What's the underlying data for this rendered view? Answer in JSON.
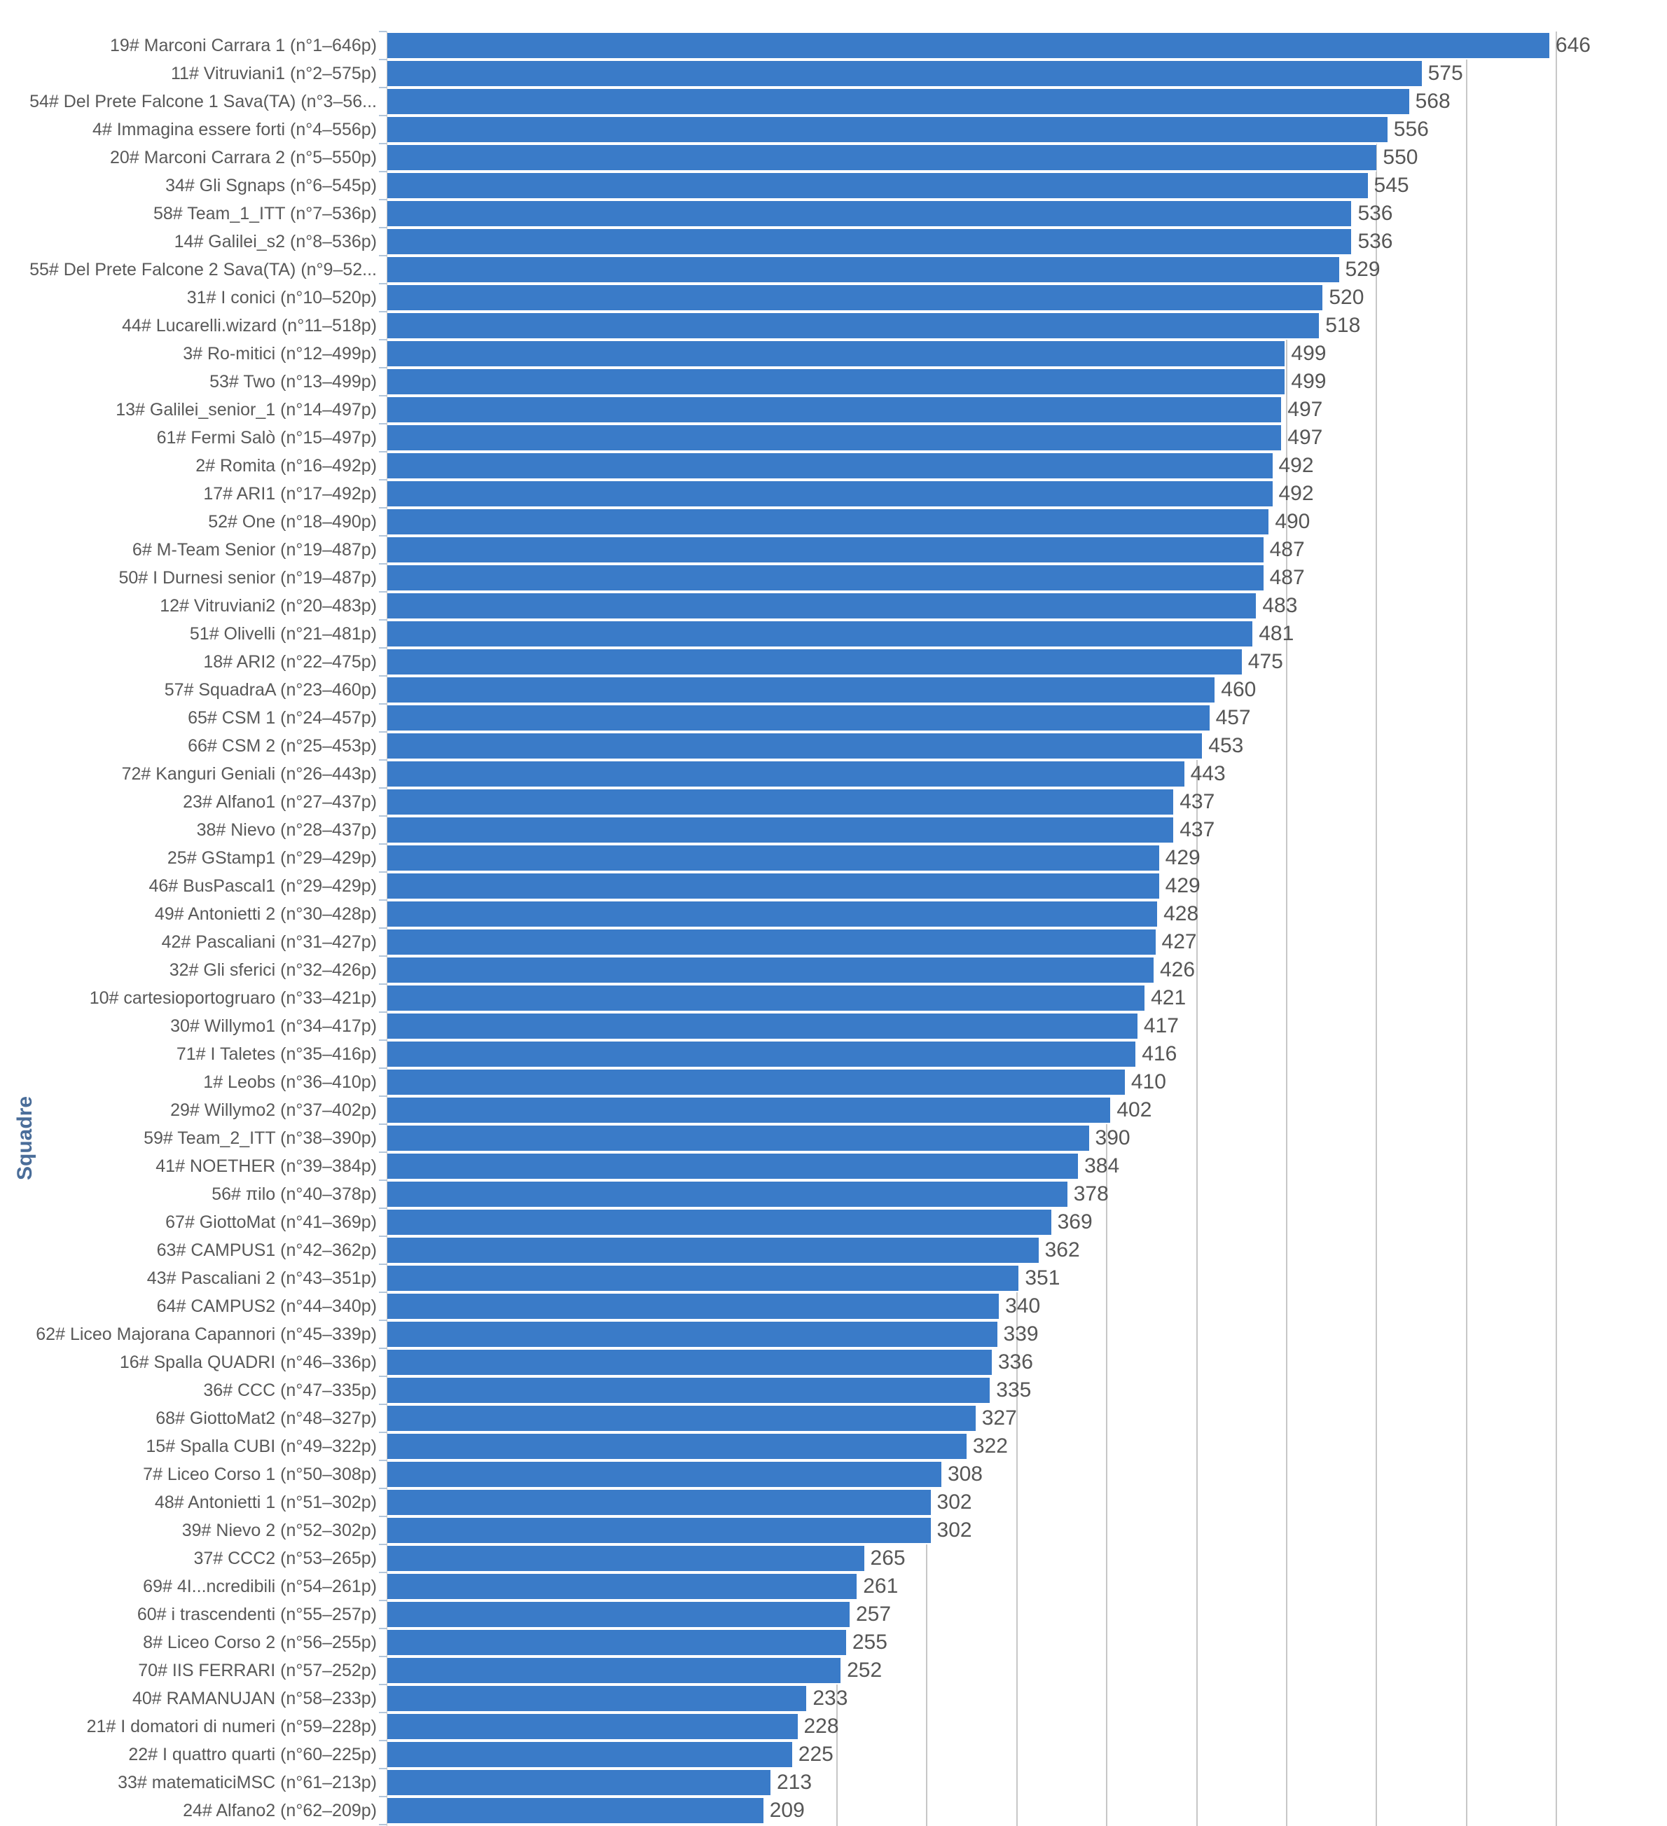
{
  "page": {
    "background": "#ffffff"
  },
  "chart_data": {
    "type": "bar",
    "orientation": "horizontal",
    "title": "",
    "xlabel": "",
    "ylabel": "Squadre",
    "xlim": [
      0,
      712
    ],
    "grid": {
      "on": true,
      "interval": 50,
      "first_line": 250,
      "last_line": 650
    },
    "legend": "none",
    "value_labels": "outside-end",
    "rows": [
      {
        "label": "19# Marconi Carrara 1 (n°1–646p)",
        "value": 646
      },
      {
        "label": "11# Vitruviani1 (n°2–575p)",
        "value": 575
      },
      {
        "label": "54# Del Prete Falcone 1 Sava(TA) (n°3–56...",
        "value": 568
      },
      {
        "label": "4# Immagina essere forti (n°4–556p)",
        "value": 556
      },
      {
        "label": "20# Marconi Carrara 2 (n°5–550p)",
        "value": 550
      },
      {
        "label": "34# Gli Sgnaps (n°6–545p)",
        "value": 545
      },
      {
        "label": "58# Team_1_ITT (n°7–536p)",
        "value": 536
      },
      {
        "label": "14# Galilei_s2 (n°8–536p)",
        "value": 536
      },
      {
        "label": "55# Del Prete Falcone 2 Sava(TA) (n°9–52...",
        "value": 529
      },
      {
        "label": "31# I conici (n°10–520p)",
        "value": 520
      },
      {
        "label": "44# Lucarelli.wizard (n°11–518p)",
        "value": 518
      },
      {
        "label": "3# Ro-mitici (n°12–499p)",
        "value": 499
      },
      {
        "label": "53# Two (n°13–499p)",
        "value": 499
      },
      {
        "label": "13# Galilei_senior_1 (n°14–497p)",
        "value": 497
      },
      {
        "label": "61# Fermi Salò (n°15–497p)",
        "value": 497
      },
      {
        "label": "2# Romita (n°16–492p)",
        "value": 492
      },
      {
        "label": "17# ARI1 (n°17–492p)",
        "value": 492
      },
      {
        "label": "52# One (n°18–490p)",
        "value": 490
      },
      {
        "label": "6# M-Team Senior (n°19–487p)",
        "value": 487
      },
      {
        "label": "50# I Durnesi senior (n°19–487p)",
        "value": 487
      },
      {
        "label": "12# Vitruviani2 (n°20–483p)",
        "value": 483
      },
      {
        "label": "51# Olivelli (n°21–481p)",
        "value": 481
      },
      {
        "label": "18# ARI2 (n°22–475p)",
        "value": 475
      },
      {
        "label": "57# SquadraA (n°23–460p)",
        "value": 460
      },
      {
        "label": "65# CSM 1 (n°24–457p)",
        "value": 457
      },
      {
        "label": "66# CSM 2 (n°25–453p)",
        "value": 453
      },
      {
        "label": "72# Kanguri Geniali (n°26–443p)",
        "value": 443
      },
      {
        "label": "23# Alfano1 (n°27–437p)",
        "value": 437
      },
      {
        "label": "38# Nievo (n°28–437p)",
        "value": 437
      },
      {
        "label": "25# GStamp1 (n°29–429p)",
        "value": 429
      },
      {
        "label": "46# BusPascal1 (n°29–429p)",
        "value": 429
      },
      {
        "label": "49# Antonietti 2 (n°30–428p)",
        "value": 428
      },
      {
        "label": "42# Pascaliani (n°31–427p)",
        "value": 427
      },
      {
        "label": "32# Gli sferici (n°32–426p)",
        "value": 426
      },
      {
        "label": "10# cartesioportogruaro (n°33–421p)",
        "value": 421
      },
      {
        "label": "30# Willymo1 (n°34–417p)",
        "value": 417
      },
      {
        "label": "71# I Taletes (n°35–416p)",
        "value": 416
      },
      {
        "label": "1# Leobs (n°36–410p)",
        "value": 410
      },
      {
        "label": "29# Willymo2 (n°37–402p)",
        "value": 402
      },
      {
        "label": "59# Team_2_ITT (n°38–390p)",
        "value": 390
      },
      {
        "label": "41# NOETHER (n°39–384p)",
        "value": 384
      },
      {
        "label": "56# πilo (n°40–378p)",
        "value": 378
      },
      {
        "label": "67# GiottoMat (n°41–369p)",
        "value": 369
      },
      {
        "label": "63# CAMPUS1 (n°42–362p)",
        "value": 362
      },
      {
        "label": "43# Pascaliani 2 (n°43–351p)",
        "value": 351
      },
      {
        "label": "64# CAMPUS2 (n°44–340p)",
        "value": 340
      },
      {
        "label": "62# Liceo Majorana Capannori (n°45–339p)",
        "value": 339
      },
      {
        "label": "16# Spalla QUADRI (n°46–336p)",
        "value": 336
      },
      {
        "label": "36# CCC (n°47–335p)",
        "value": 335
      },
      {
        "label": "68# GiottoMat2 (n°48–327p)",
        "value": 327
      },
      {
        "label": "15# Spalla CUBI (n°49–322p)",
        "value": 322
      },
      {
        "label": "7# Liceo Corso 1 (n°50–308p)",
        "value": 308
      },
      {
        "label": "48# Antonietti 1 (n°51–302p)",
        "value": 302
      },
      {
        "label": "39# Nievo 2 (n°52–302p)",
        "value": 302
      },
      {
        "label": "37# CCC2 (n°53–265p)",
        "value": 265
      },
      {
        "label": "69# 4I...ncredibili (n°54–261p)",
        "value": 261
      },
      {
        "label": "60# i trascendenti (n°55–257p)",
        "value": 257
      },
      {
        "label": "8# Liceo Corso 2 (n°56–255p)",
        "value": 255
      },
      {
        "label": "70# IIS FERRARI (n°57–252p)",
        "value": 252
      },
      {
        "label": "40# RAMANUJAN (n°58–233p)",
        "value": 233
      },
      {
        "label": "21# I domatori di numeri (n°59–228p)",
        "value": 228
      },
      {
        "label": "22# I quattro quarti (n°60–225p)",
        "value": 225
      },
      {
        "label": "33# matematiciMSC (n°61–213p)",
        "value": 213
      },
      {
        "label": "24# Alfano2 (n°62–209p)",
        "value": 209
      }
    ]
  },
  "colors": {
    "bar": "#3a7bc8",
    "gridline": "#c7c7c7",
    "axis_line": "#c7c7c7",
    "tick": "#b3c6da",
    "category_label": "#595959",
    "value_label": "#565656",
    "axis_title": "#4a6d99"
  }
}
